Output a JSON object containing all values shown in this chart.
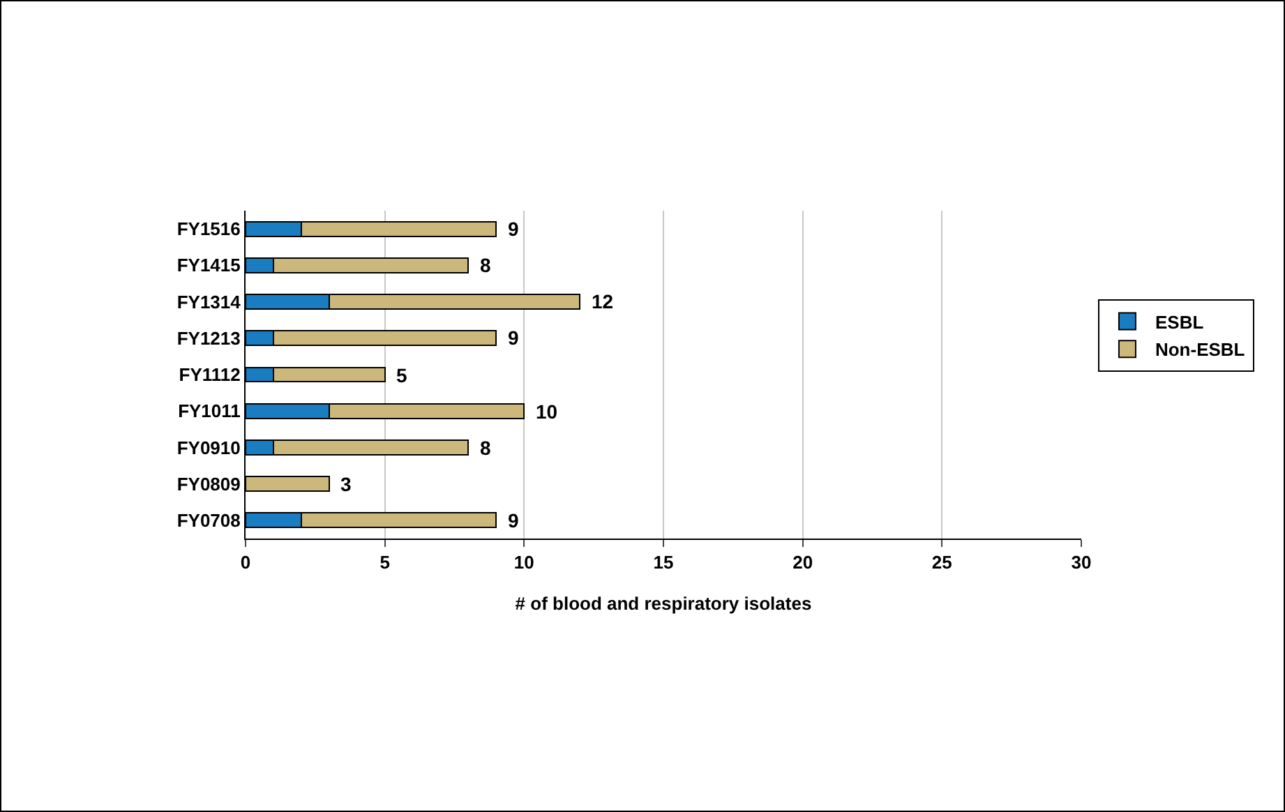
{
  "chart_data": {
    "type": "bar",
    "orientation": "horizontal",
    "stacked": true,
    "xlabel": "# of blood and respiratory isolates",
    "categories": [
      "FY1516",
      "FY1415",
      "FY1314",
      "FY1213",
      "FY1112",
      "FY1011",
      "FY0910",
      "FY0809",
      "FY0708"
    ],
    "series": [
      {
        "name": "ESBL",
        "color": "#1a7cc1",
        "values": [
          2,
          1,
          3,
          1,
          1,
          3,
          1,
          0,
          2
        ]
      },
      {
        "name": "Non-ESBL",
        "color": "#cdb87c",
        "values": [
          7,
          7,
          9,
          8,
          4,
          7,
          7,
          3,
          7
        ]
      }
    ],
    "totals": [
      "9",
      "8",
      "12",
      "9",
      "5",
      "10",
      "8",
      "3",
      "9"
    ],
    "xlim": [
      0,
      30
    ],
    "xticks": [
      0,
      5,
      10,
      15,
      20,
      25,
      30
    ],
    "grid": "x",
    "legend": "right"
  }
}
